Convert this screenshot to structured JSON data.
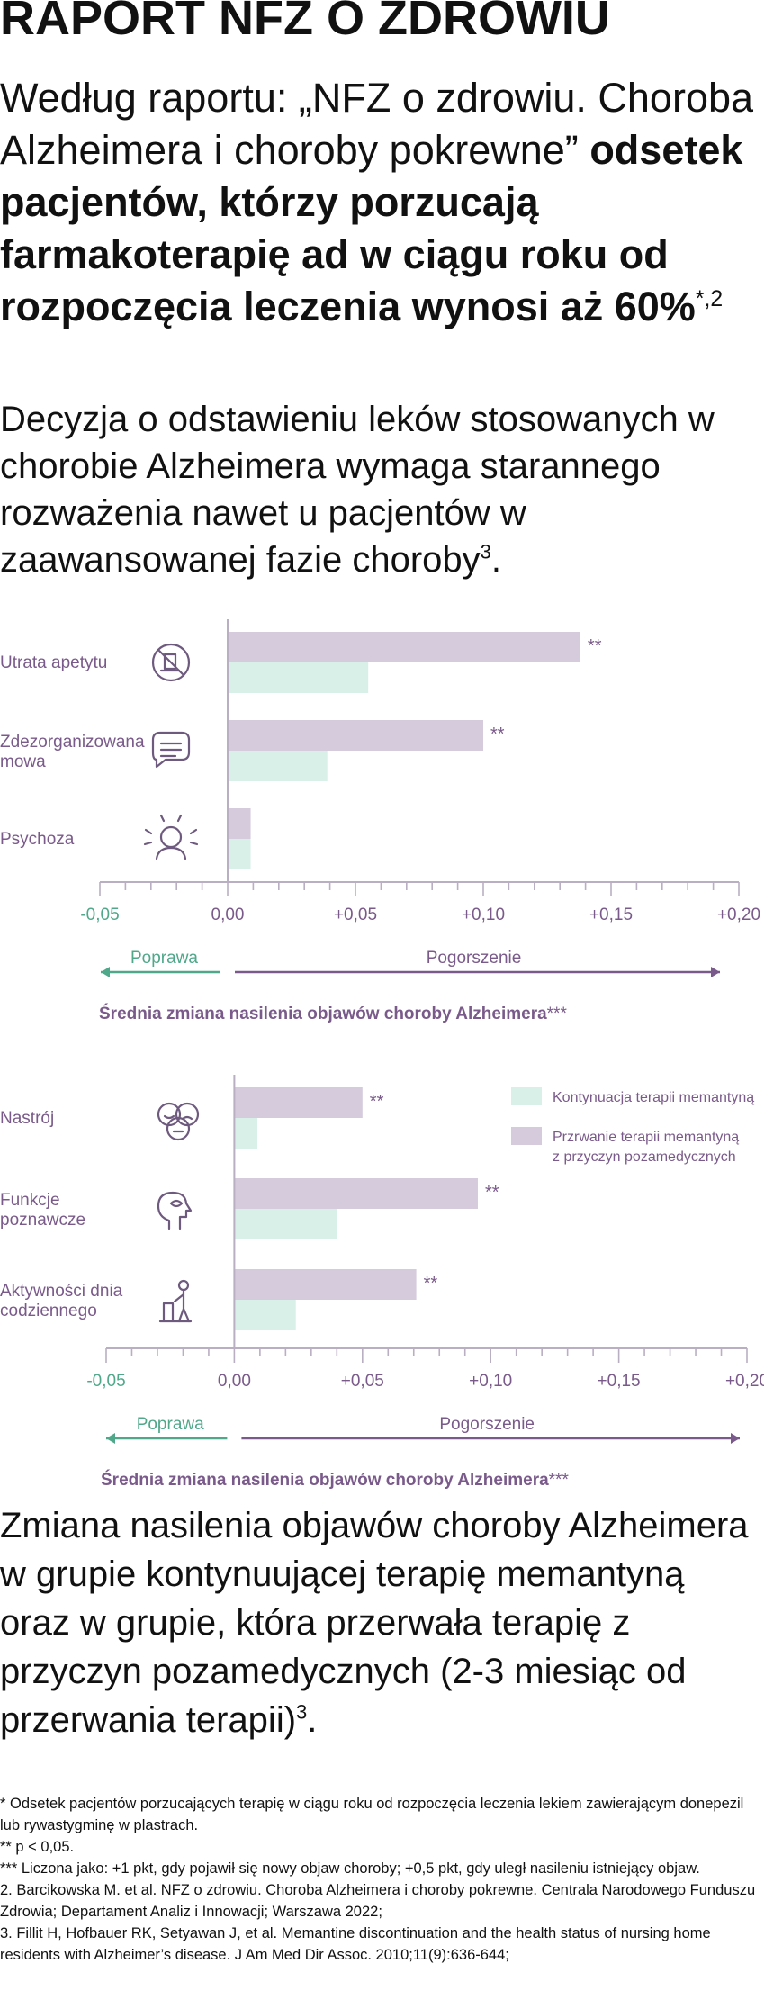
{
  "page": {
    "title": "RAPORT NFZ O ZDROWIU",
    "lead_normal": "Według raportu: „NFZ o zdrowiu. Choroba Alzheimera i choroby pokrewne”",
    "lead_bold": "odsetek pacjentów, którzy porzucają farmakoterapię ad w ciągu roku od rozpoczęcia leczenia wynosi aż 60%",
    "lead_mark": "*,2",
    "paragraph": "Decyzja o odstawieniu leków stosowanych w chorobie Alzheimera wymaga starannego rozważenia nawet u pacjentów w zaawansowanej fazie choroby",
    "paragraph_ref": "3",
    "paragraph_end": ".",
    "conclusion": "Zmiana nasilenia objawów choroby Alzheimera w grupie kontynuującej terapię memantyną oraz w grupie, która przerwała terapię z przyczyn pozamedycznych (2-3 miesiąc od przerwania terapii)",
    "conclusion_ref": "3",
    "conclusion_end": "."
  },
  "colors": {
    "continued": "#d9f0e9",
    "discontinued": "#d5cbdc",
    "improve": "#4fa88a",
    "worsen": "#7a5a8a",
    "icon": "#6e5a7e"
  },
  "chart_data": [
    {
      "type": "bar",
      "orientation": "horizontal",
      "categories": [
        "Utrata apetytu",
        "Zdezorganizowana mowa",
        "Psychoza"
      ],
      "category_lines": [
        [
          "Utrata apetytu"
        ],
        [
          "Zdezorganizowana",
          "mowa"
        ],
        [
          "Psychoza"
        ]
      ],
      "icons": [
        "food-icon",
        "speech-bubble-icon",
        "psychosis-head-icon"
      ],
      "series": [
        {
          "values": [
            0.138,
            0.1,
            0.009
          ],
          "significance": [
            "**",
            "**",
            ""
          ]
        },
        {
          "values": [
            0.055,
            0.039,
            0.009
          ],
          "significance": [
            "",
            "",
            ""
          ]
        }
      ],
      "xlim": [
        -0.05,
        0.2
      ],
      "ticks": [
        "-0,05",
        "0,00",
        "+0,05",
        "+0,10",
        "+0,15",
        "+0,20"
      ],
      "improve_label": "Poprawa",
      "worsen_label": "Pogorszenie",
      "xlabel": "Średnia zmiana nasilenia objawów choroby Alzheimera",
      "xlabel_mark": "***"
    },
    {
      "type": "bar",
      "orientation": "horizontal",
      "categories": [
        "Nastrój",
        "Funkcje poznawcze",
        "Aktywności dnia codziennego"
      ],
      "category_lines": [
        [
          "Nastrój"
        ],
        [
          "Funkcje",
          "poznawcze"
        ],
        [
          "Aktywności dnia",
          "codziennego"
        ]
      ],
      "icons": [
        "mood-faces-icon",
        "cognition-head-icon",
        "daily-activity-icon"
      ],
      "series": [
        {
          "name": "Przrwanie terapii memantyną z przyczyn pozamedycznych",
          "name_lines": [
            "Przrwanie terapii memantyną",
            "z przyczyn pozamedycznych"
          ],
          "values": [
            0.05,
            0.095,
            0.071
          ],
          "significance": [
            "**",
            "**",
            "**"
          ]
        },
        {
          "name": "Kontynuacja terapii memantyną",
          "name_lines": [
            "Kontynuacja terapii memantyną"
          ],
          "values": [
            0.009,
            0.04,
            0.024
          ],
          "significance": [
            "",
            "",
            ""
          ]
        }
      ],
      "legend": "top-right",
      "xlim": [
        -0.05,
        0.2
      ],
      "ticks": [
        "-0,05",
        "0,00",
        "+0,05",
        "+0,10",
        "+0,15",
        "+0,20"
      ],
      "improve_label": "Poprawa",
      "worsen_label": "Pogorszenie",
      "xlabel": "Średnia zmiana nasilenia objawów choroby Alzheimera",
      "xlabel_mark": "***"
    }
  ],
  "footnotes": [
    "* Odsetek pacjentów porzucających terapię w ciągu roku od rozpoczęcia leczenia lekiem zawierającym donepezil lub rywastygminę w plastrach.",
    "** p < 0,05.",
    "*** Liczona jako: +1 pkt, gdy pojawił się nowy objaw choroby; +0,5 pkt, gdy uległ nasileniu istniejący objaw.",
    "2. Barcikowska M. et al. NFZ o zdrowiu. Choroba Alzheimera i choroby pokrewne. Centrala Narodowego Funduszu Zdrowia; Departament Analiz i Innowacji; Warszawa 2022;",
    "3. Fillit H, Hofbauer RK, Setyawan J, et al. Memantine discontinuation and the health status of nursing home residents with Alzheimer’s disease. J Am Med Dir Assoc. 2010;11(9):636-644;"
  ]
}
